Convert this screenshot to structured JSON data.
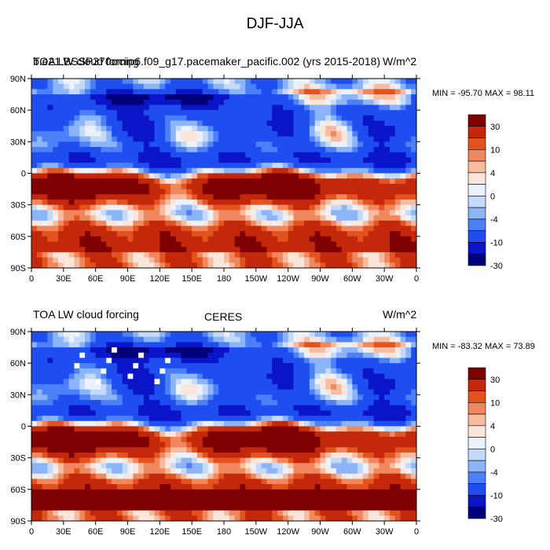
{
  "main_title": "DJF-JJA",
  "colors": {
    "levels": [
      "#00007a",
      "#0a14c8",
      "#1e4ef0",
      "#4c80f8",
      "#8cb4f8",
      "#c4daf8",
      "#eaf2fb",
      "#fbe6dc",
      "#f7bca0",
      "#f0875e",
      "#e2531e",
      "#c4280a",
      "#7e0000"
    ]
  },
  "chart_data": [
    {
      "type": "heatmap",
      "panel": "top",
      "title_left": "TOA LW cloud forcing",
      "title_overlap": "b.e21.BSSP370cmip6.f09_g17.pacemaker_pacific.002 (yrs 2015-2018)",
      "title_center": "",
      "units": "W/m^2",
      "min_max": "MIN = -95.70 MAX =  98.11",
      "xticks": [
        "0",
        "30E",
        "60E",
        "90E",
        "120E",
        "150E",
        "180",
        "150W",
        "120W",
        "90W",
        "60W",
        "30W",
        "0"
      ],
      "yticks": [
        "90N",
        "60N",
        "30N",
        "0",
        "30S",
        "60S",
        "90S"
      ],
      "colorbar_labels": [
        "30",
        "10",
        "4",
        "0",
        "-4",
        "-10",
        "-30"
      ],
      "lon_range": [
        0,
        360
      ],
      "lat_range": [
        -90,
        90
      ]
    },
    {
      "type": "heatmap",
      "panel": "bottom",
      "title_left": "TOA LW cloud forcing",
      "title_center": "CERES",
      "units": "W/m^2",
      "min_max": "MIN = -83.32 MAX =  73.89",
      "xticks": [
        "0",
        "30E",
        "60E",
        "90E",
        "120E",
        "150E",
        "180",
        "150W",
        "120W",
        "90W",
        "60W",
        "30W",
        "0"
      ],
      "yticks": [
        "90N",
        "60N",
        "30N",
        "0",
        "30S",
        "60S",
        "90S"
      ],
      "colorbar_labels": [
        "30",
        "10",
        "4",
        "0",
        "-4",
        "-10",
        "-30"
      ],
      "lon_range": [
        0,
        360
      ],
      "lat_range": [
        -90,
        90
      ]
    }
  ]
}
